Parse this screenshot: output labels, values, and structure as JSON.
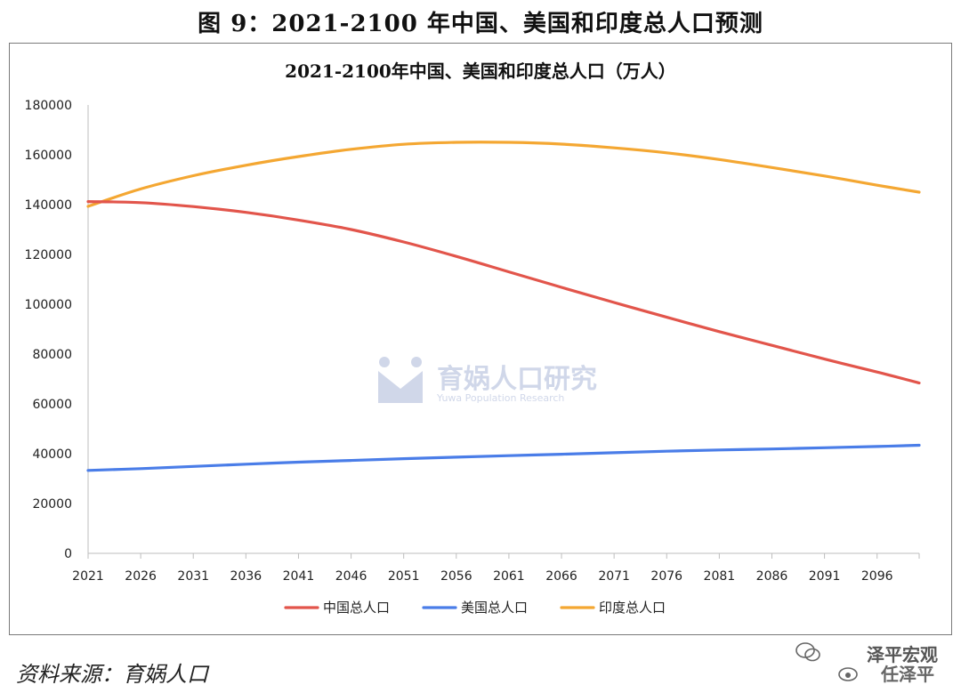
{
  "figure_title": "图 9：2021-2100 年中国、美国和印度总人口预测",
  "source_note": "资料来源：育娲人口",
  "watermark": {
    "name": "育娲人口研究",
    "subtitle": "Yuwa Population Research"
  },
  "brand": {
    "line1": "泽平宏观",
    "line2": "任泽平"
  },
  "colors": {
    "china": "#e2554b",
    "usa": "#4a7de8",
    "india": "#f4a732",
    "axis": "#bdbdbd"
  },
  "chart_data": {
    "type": "line",
    "title": "2021-2100年中国、美国和印度总人口（万人）",
    "xlabel": "",
    "ylabel": "",
    "x_ticks": [
      "2021",
      "2026",
      "2031",
      "2036",
      "2041",
      "2046",
      "2051",
      "2056",
      "2061",
      "2066",
      "2071",
      "2076",
      "2081",
      "2086",
      "2091",
      "2096"
    ],
    "y_ticks": [
      "0",
      "20000",
      "40000",
      "60000",
      "80000",
      "100000",
      "120000",
      "140000",
      "160000",
      "180000"
    ],
    "ylim": [
      0,
      180000
    ],
    "xlim": [
      2021,
      2100
    ],
    "grid": false,
    "legend_position": "bottom",
    "x": [
      2021,
      2026,
      2031,
      2036,
      2041,
      2046,
      2051,
      2056,
      2061,
      2066,
      2071,
      2076,
      2081,
      2086,
      2091,
      2096,
      2100
    ],
    "series": [
      {
        "name": "中国总人口",
        "color_key": "china",
        "values": [
          141200,
          140800,
          139200,
          136900,
          133800,
          130000,
          125000,
          119200,
          113000,
          106800,
          100700,
          94800,
          89000,
          83500,
          78000,
          72800,
          68400
        ]
      },
      {
        "name": "美国总人口",
        "color_key": "usa",
        "values": [
          33300,
          34000,
          34900,
          35800,
          36600,
          37300,
          38000,
          38600,
          39200,
          39800,
          40400,
          41000,
          41500,
          41900,
          42400,
          42900,
          43400
        ]
      },
      {
        "name": "印度总人口",
        "color_key": "india",
        "values": [
          139300,
          146300,
          151600,
          155800,
          159300,
          162200,
          164200,
          165000,
          165000,
          164300,
          162800,
          160800,
          158100,
          154900,
          151500,
          147800,
          145000
        ]
      }
    ]
  }
}
